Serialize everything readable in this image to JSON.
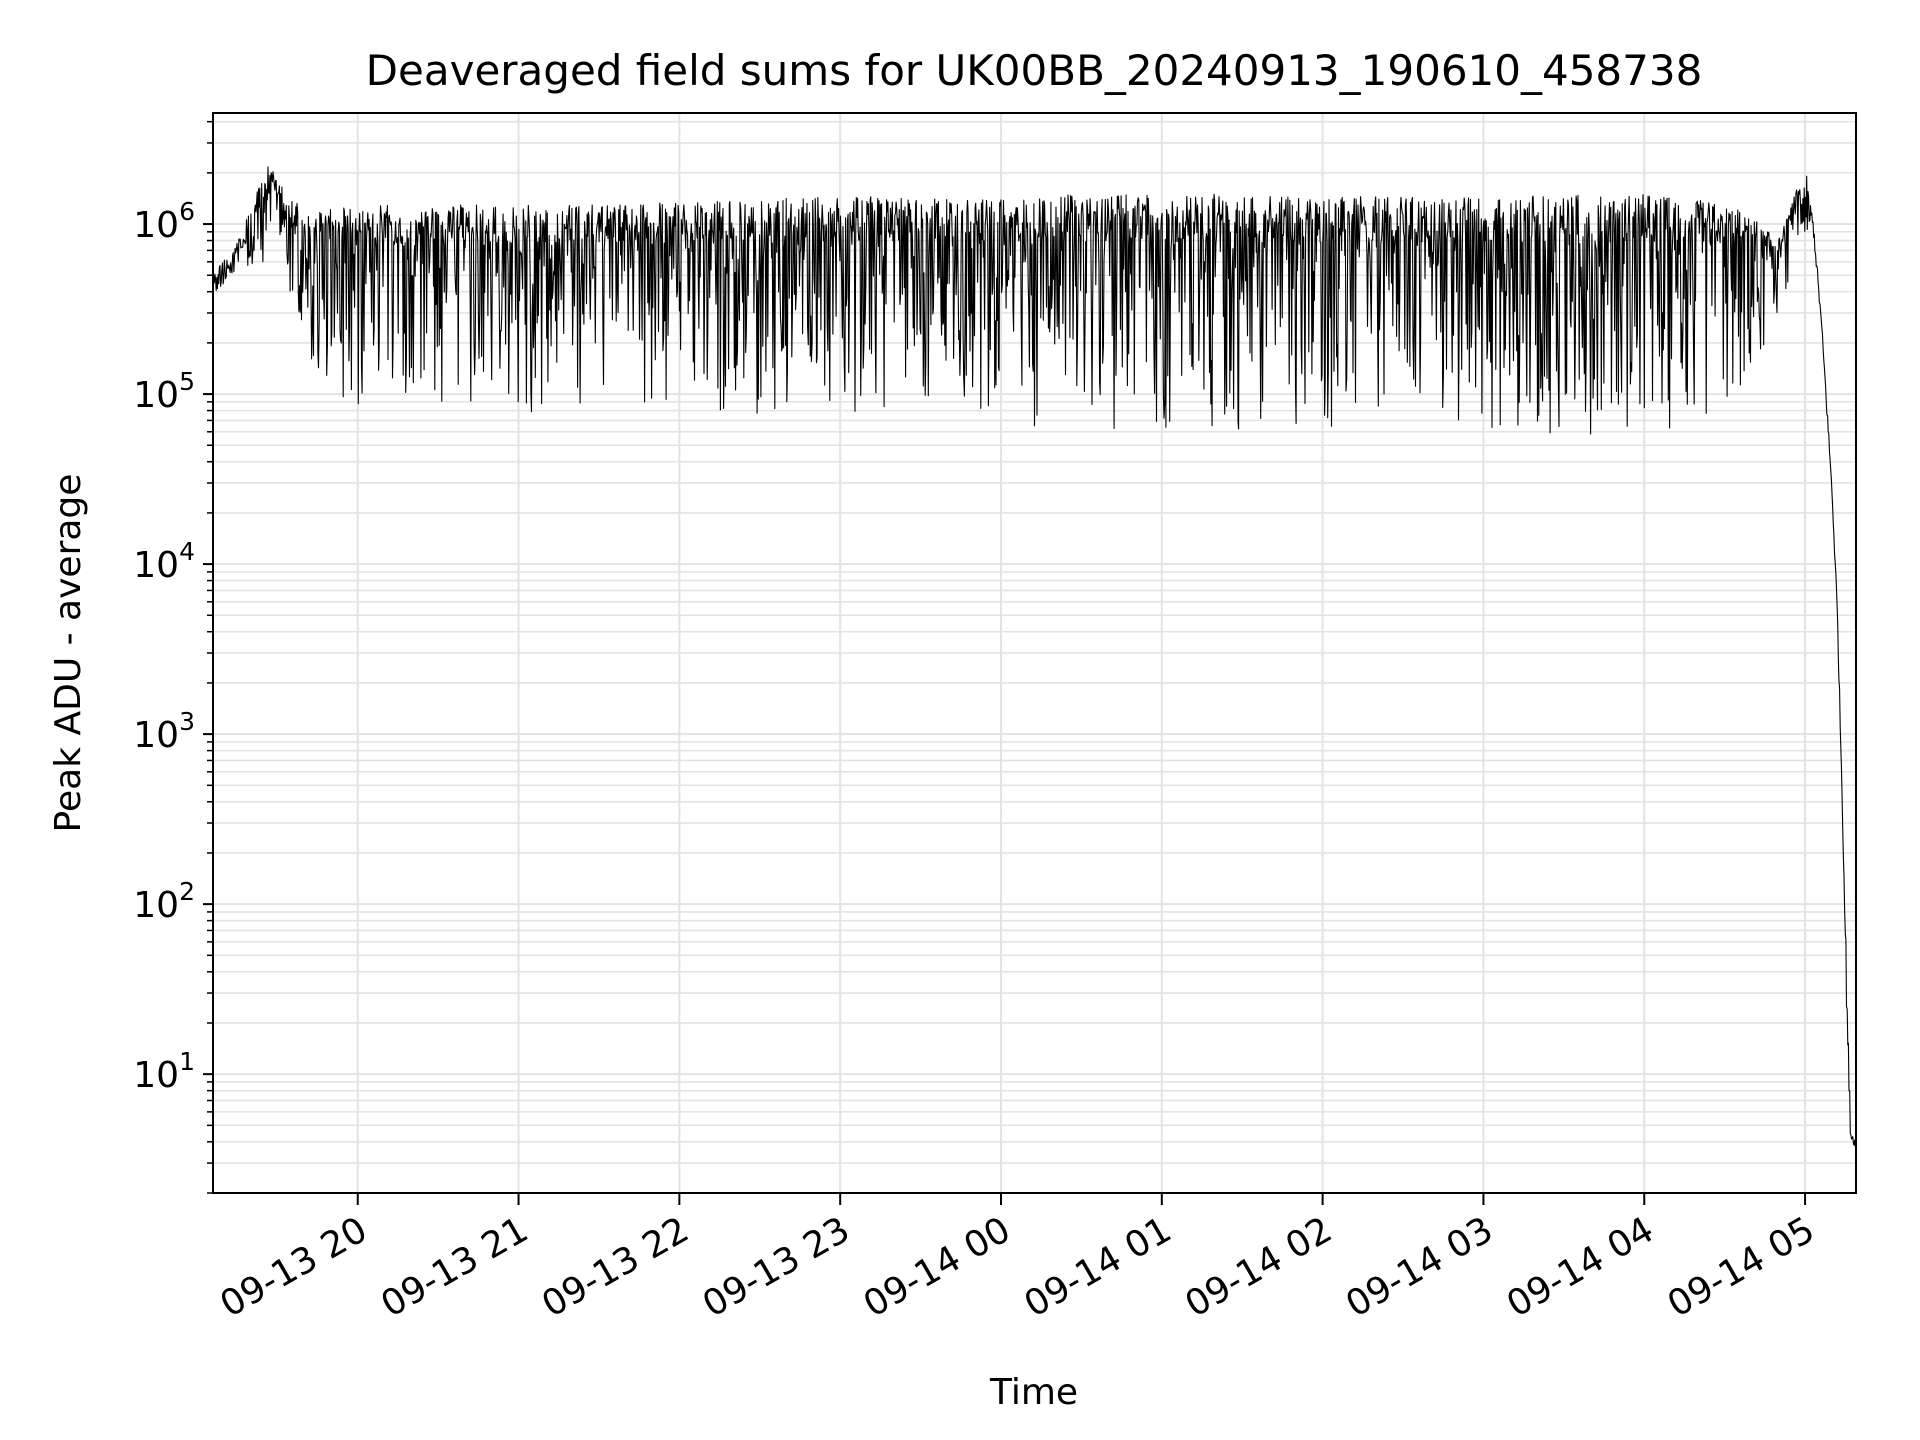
{
  "chart_data": {
    "type": "line",
    "title": "Deaveraged field sums for UK00BB_20240913_190610_458738",
    "xlabel": "Time",
    "ylabel": "Peak ADU - average",
    "yscale": "log",
    "xlim": [
      "2024-09-13 19:06",
      "2024-09-14 05:19"
    ],
    "ylim": [
      2,
      4500000.0
    ],
    "grid": true,
    "line_color": "#000000",
    "x_ticks": [
      {
        "label": "09-13 20",
        "t": "2024-09-13 20:00"
      },
      {
        "label": "09-13 21",
        "t": "2024-09-13 21:00"
      },
      {
        "label": "09-13 22",
        "t": "2024-09-13 22:00"
      },
      {
        "label": "09-13 23",
        "t": "2024-09-13 23:00"
      },
      {
        "label": "09-14 00",
        "t": "2024-09-14 00:00"
      },
      {
        "label": "09-14 01",
        "t": "2024-09-14 01:00"
      },
      {
        "label": "09-14 02",
        "t": "2024-09-14 02:00"
      },
      {
        "label": "09-14 03",
        "t": "2024-09-14 03:00"
      },
      {
        "label": "09-14 04",
        "t": "2024-09-14 04:00"
      },
      {
        "label": "09-14 05",
        "t": "2024-09-14 05:00"
      }
    ],
    "y_ticks": [
      {
        "base": "10",
        "exp": "1",
        "value": 10
      },
      {
        "base": "10",
        "exp": "2",
        "value": 100
      },
      {
        "base": "10",
        "exp": "3",
        "value": 1000
      },
      {
        "base": "10",
        "exp": "4",
        "value": 10000
      },
      {
        "base": "10",
        "exp": "5",
        "value": 100000
      },
      {
        "base": "10",
        "exp": "6",
        "value": 1000000
      }
    ],
    "series": [
      {
        "envelope": [
          {
            "t": "2024-09-13 19:06",
            "lo": 380000,
            "hi": 500000
          },
          {
            "t": "2024-09-13 19:15",
            "lo": 550000,
            "hi": 800000
          },
          {
            "t": "2024-09-13 19:27",
            "lo": 600000,
            "hi": 2300000
          },
          {
            "t": "2024-09-13 19:35",
            "lo": 250000,
            "hi": 1400000
          },
          {
            "t": "2024-09-13 19:45",
            "lo": 120000,
            "hi": 1200000
          },
          {
            "t": "2024-09-13 20:00",
            "lo": 75000,
            "hi": 1300000
          },
          {
            "t": "2024-09-13 20:30",
            "lo": 70000,
            "hi": 1300000
          },
          {
            "t": "2024-09-13 21:00",
            "lo": 75000,
            "hi": 1300000
          },
          {
            "t": "2024-09-13 21:30",
            "lo": 80000,
            "hi": 1300000
          },
          {
            "t": "2024-09-13 22:00",
            "lo": 80000,
            "hi": 1350000
          },
          {
            "t": "2024-09-13 22:30",
            "lo": 75000,
            "hi": 1400000
          },
          {
            "t": "2024-09-13 23:00",
            "lo": 70000,
            "hi": 1450000
          },
          {
            "t": "2024-09-13 23:30",
            "lo": 70000,
            "hi": 1450000
          },
          {
            "t": "2024-09-14 00:00",
            "lo": 60000,
            "hi": 1400000
          },
          {
            "t": "2024-09-14 00:30",
            "lo": 58000,
            "hi": 1500000
          },
          {
            "t": "2024-09-14 01:00",
            "lo": 58000,
            "hi": 1500000
          },
          {
            "t": "2024-09-14 01:30",
            "lo": 58000,
            "hi": 1500000
          },
          {
            "t": "2024-09-14 02:00",
            "lo": 58000,
            "hi": 1450000
          },
          {
            "t": "2024-09-14 02:30",
            "lo": 58000,
            "hi": 1450000
          },
          {
            "t": "2024-09-14 03:00",
            "lo": 58000,
            "hi": 1450000
          },
          {
            "t": "2024-09-14 03:30",
            "lo": 58000,
            "hi": 1500000
          },
          {
            "t": "2024-09-14 04:00",
            "lo": 58000,
            "hi": 1500000
          },
          {
            "t": "2024-09-14 04:20",
            "lo": 60000,
            "hi": 1400000
          },
          {
            "t": "2024-09-14 04:38",
            "lo": 100000,
            "hi": 1200000
          },
          {
            "t": "2024-09-14 04:50",
            "lo": 300000,
            "hi": 800000
          },
          {
            "t": "2024-09-14 05:00",
            "lo": 800000,
            "hi": 2200000
          },
          {
            "t": "2024-09-14 05:03",
            "lo": 900000,
            "hi": 1100000
          },
          {
            "t": "2024-09-14 05:06",
            "lo": 250000,
            "hi": 300000
          },
          {
            "t": "2024-09-14 05:08",
            "lo": 80000,
            "hi": 100000
          },
          {
            "t": "2024-09-14 05:10",
            "lo": 25000,
            "hi": 30000
          },
          {
            "t": "2024-09-14 05:12",
            "lo": 5000,
            "hi": 6000
          },
          {
            "t": "2024-09-14 05:14",
            "lo": 300,
            "hi": 400
          },
          {
            "t": "2024-09-14 05:16",
            "lo": 10,
            "hi": 20
          },
          {
            "t": "2024-09-14 05:17",
            "lo": 4,
            "hi": 5
          },
          {
            "t": "2024-09-14 05:19",
            "lo": 3.7,
            "hi": 4
          }
        ]
      }
    ]
  }
}
